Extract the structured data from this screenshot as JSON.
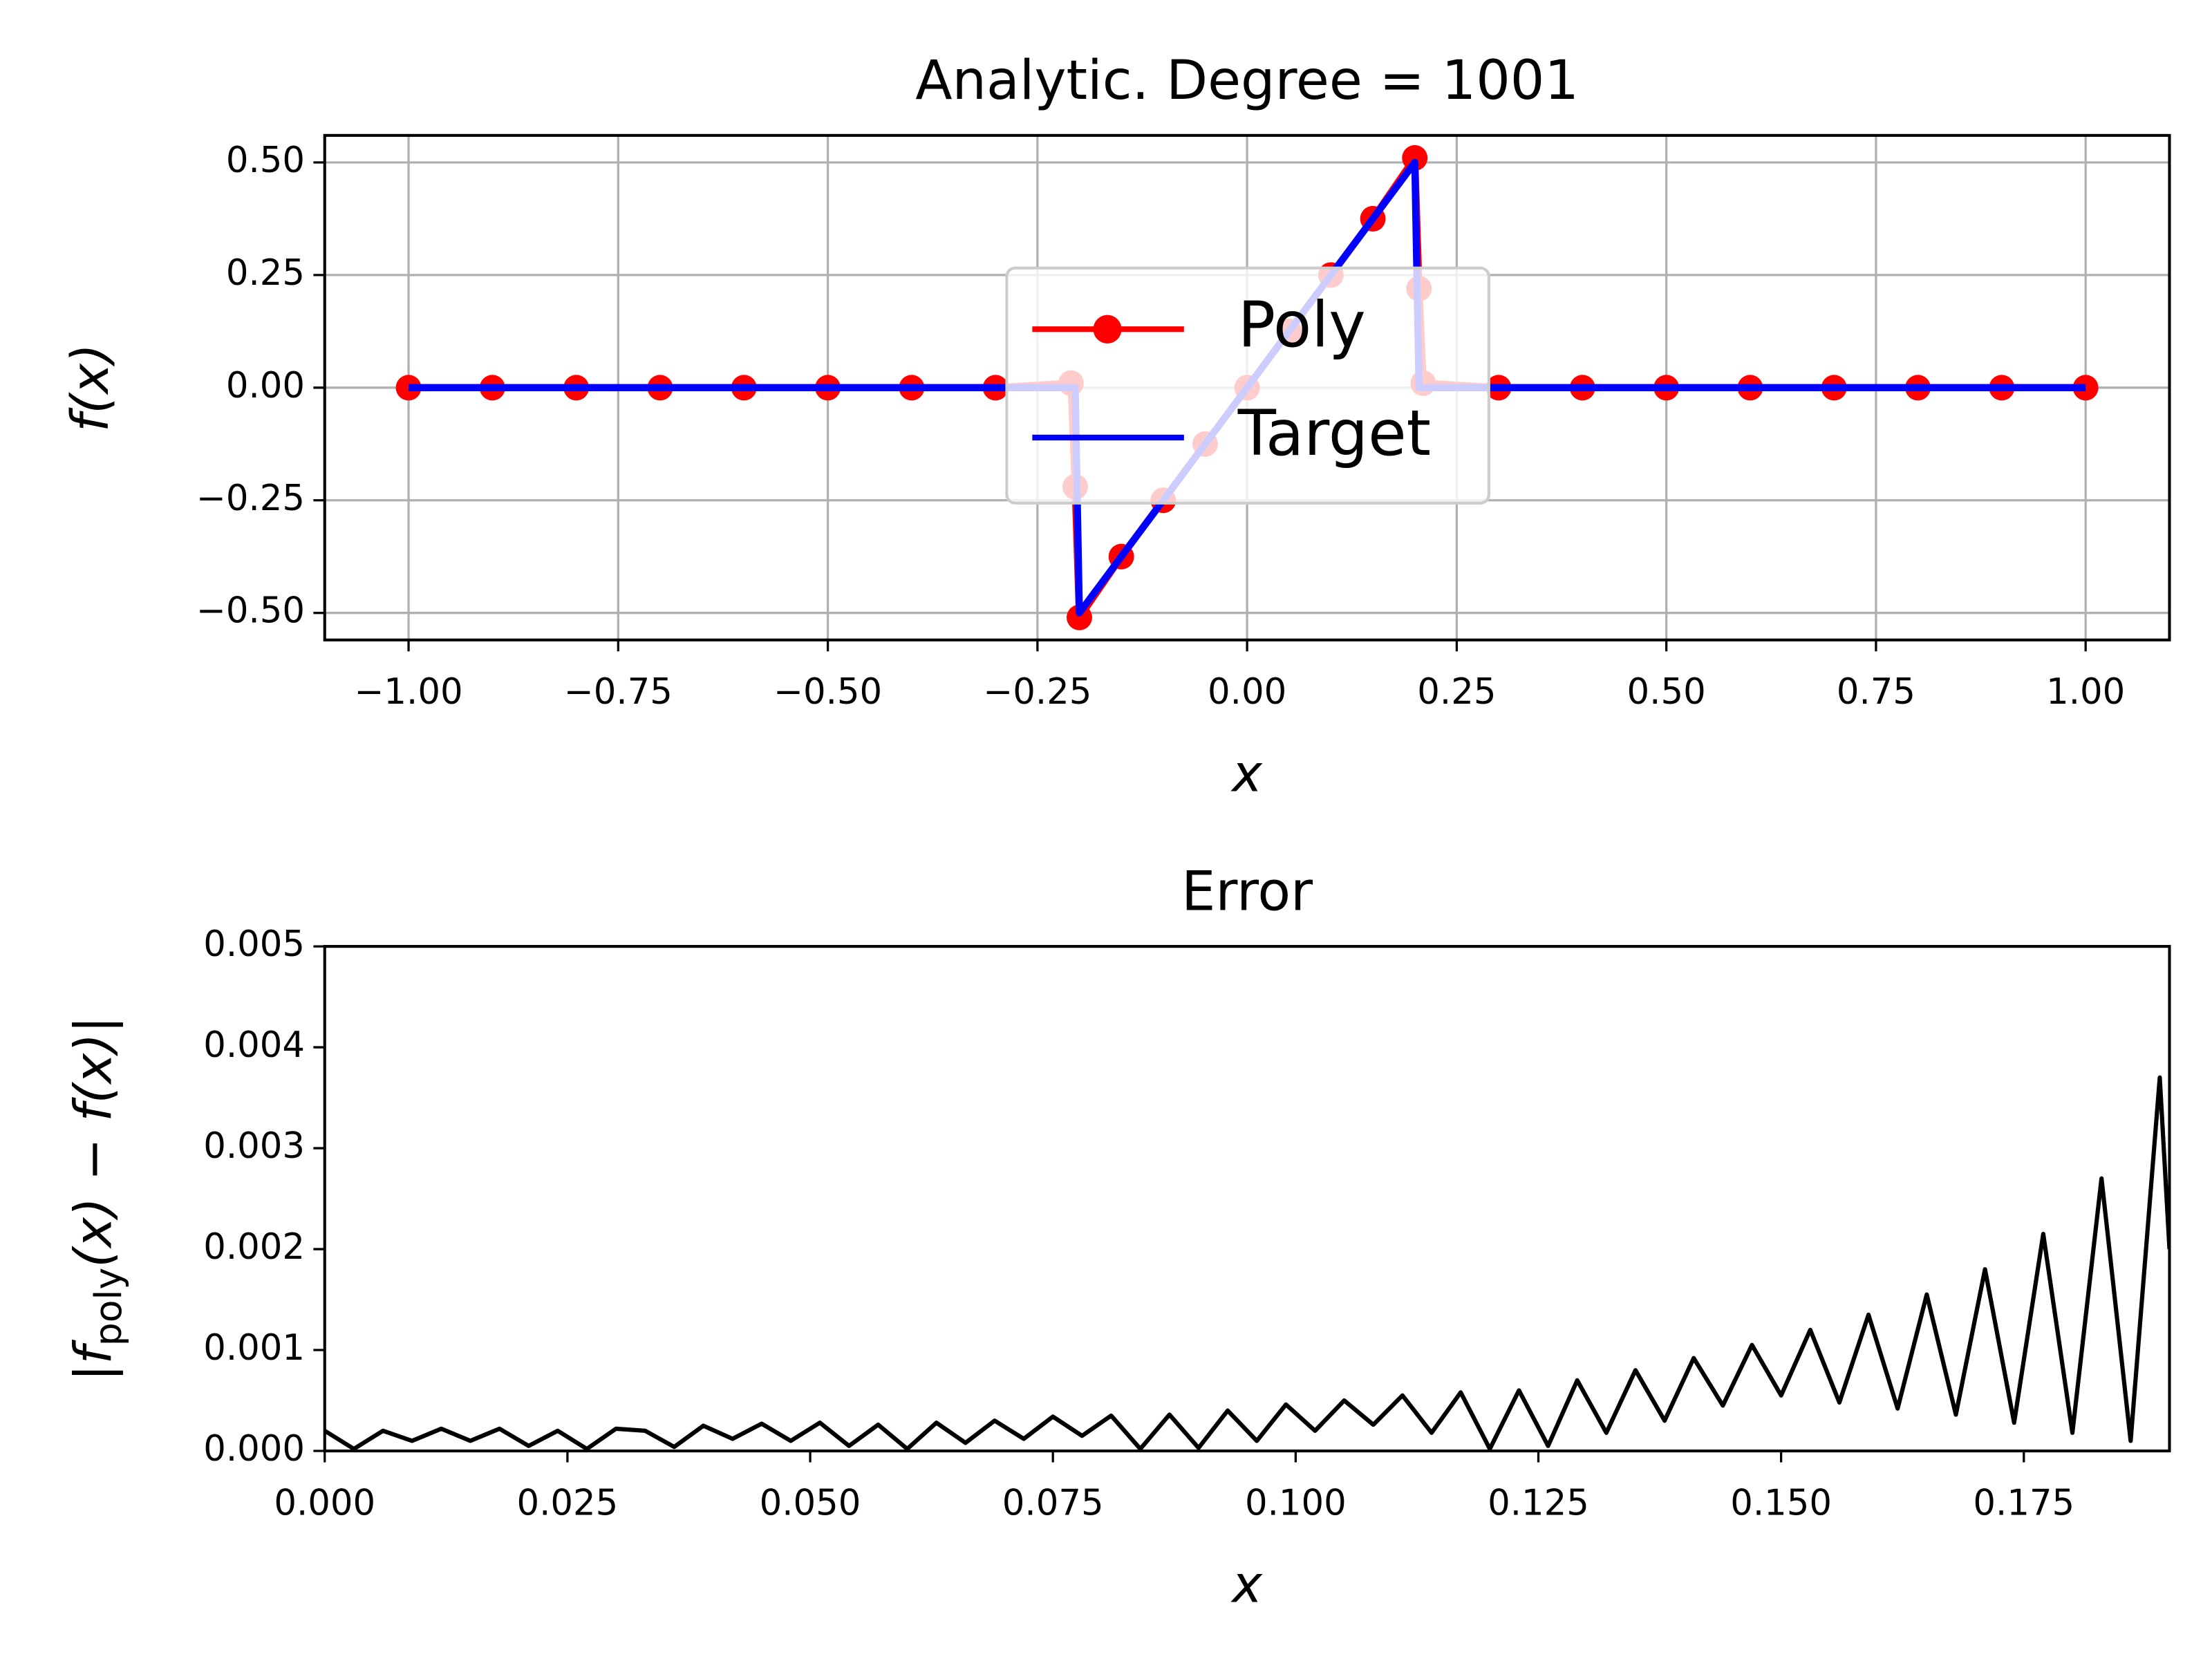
{
  "chart_data": [
    {
      "type": "line",
      "title": "Analytic. Degree = 1001",
      "xlabel": "x",
      "ylabel": "f(x)",
      "x": [
        -1,
        -0.9,
        -0.8,
        -0.7,
        -0.6,
        -0.5,
        -0.4,
        -0.3,
        -0.21,
        -0.205,
        -0.2,
        -0.15,
        -0.1,
        -0.05,
        0,
        0.05,
        0.1,
        0.15,
        0.2,
        0.205,
        0.21,
        0.3,
        0.4,
        0.5,
        0.6,
        0.7,
        0.8,
        0.9,
        1
      ],
      "series": [
        {
          "name": "Poly",
          "color": "#ff0000",
          "marker": true,
          "values": [
            0,
            0,
            0,
            0,
            0,
            0,
            0,
            0,
            0.01,
            -0.22,
            -0.51,
            -0.375,
            -0.25,
            -0.125,
            0,
            0.125,
            0.25,
            0.375,
            0.51,
            0.22,
            0.01,
            0,
            0,
            0,
            0,
            0,
            0,
            0,
            0
          ]
        },
        {
          "name": "Target",
          "color": "#0000ff",
          "marker": false,
          "values": [
            0,
            0,
            0,
            0,
            0,
            0,
            0,
            0,
            0,
            0,
            -0.5,
            -0.375,
            -0.25,
            -0.125,
            0,
            0.125,
            0.25,
            0.375,
            0.5,
            0,
            0,
            0,
            0,
            0,
            0,
            0,
            0,
            0,
            0
          ]
        }
      ],
      "xlim": [
        -1.1,
        1.1
      ],
      "ylim": [
        -0.56,
        0.56
      ],
      "xticks": [
        {
          "value": -1,
          "label": "−1.00"
        },
        {
          "value": -0.75,
          "label": "−0.75"
        },
        {
          "value": -0.5,
          "label": "−0.50"
        },
        {
          "value": -0.25,
          "label": "−0.25"
        },
        {
          "value": 0,
          "label": "0.00"
        },
        {
          "value": 0.25,
          "label": "0.25"
        },
        {
          "value": 0.5,
          "label": "0.50"
        },
        {
          "value": 0.75,
          "label": "0.75"
        },
        {
          "value": 1,
          "label": "1.00"
        }
      ],
      "yticks": [
        {
          "value": -0.5,
          "label": "−0.50"
        },
        {
          "value": -0.25,
          "label": "−0.25"
        },
        {
          "value": 0,
          "label": "0.00"
        },
        {
          "value": 0.25,
          "label": "0.25"
        },
        {
          "value": 0.5,
          "label": "0.50"
        }
      ],
      "grid": true,
      "legend": "center"
    },
    {
      "type": "line",
      "title": "Error",
      "xlabel": "x",
      "ylabel": [
        "|f",
        "poly",
        "(x) − f(x)|"
      ],
      "x": [
        0,
        0.003,
        0.006,
        0.009,
        0.012,
        0.015,
        0.018,
        0.021,
        0.024,
        0.027,
        0.03,
        0.033,
        0.036,
        0.039,
        0.042,
        0.045,
        0.048,
        0.051,
        0.054,
        0.057,
        0.06,
        0.063,
        0.066,
        0.069,
        0.072,
        0.075,
        0.078,
        0.081,
        0.084,
        0.087,
        0.09,
        0.093,
        0.096,
        0.099,
        0.102,
        0.105,
        0.108,
        0.111,
        0.114,
        0.117,
        0.12,
        0.123,
        0.126,
        0.129,
        0.132,
        0.135,
        0.138,
        0.141,
        0.144,
        0.147,
        0.15,
        0.153,
        0.156,
        0.159,
        0.162,
        0.165,
        0.168,
        0.171,
        0.174,
        0.177,
        0.18,
        0.183,
        0.186,
        0.189,
        0.19
      ],
      "series": [
        {
          "name": "Error",
          "color": "#000000",
          "marker": false,
          "values": [
            0.0002,
            2e-05,
            0.0002,
            0.0001,
            0.00022,
            0.0001,
            0.00022,
            5e-05,
            0.0002,
            2e-05,
            0.00022,
            0.0002,
            4e-05,
            0.00025,
            0.00012,
            0.00027,
            0.0001,
            0.00028,
            5e-05,
            0.00026,
            2e-05,
            0.00028,
            8e-05,
            0.0003,
            0.00012,
            0.00034,
            0.00015,
            0.00035,
            2e-05,
            0.00036,
            3e-05,
            0.0004,
            0.0001,
            0.00046,
            0.0002,
            0.0005,
            0.00026,
            0.00055,
            0.00018,
            0.00058,
            2e-05,
            0.0006,
            5e-05,
            0.0007,
            0.00018,
            0.0008,
            0.0003,
            0.00092,
            0.00045,
            0.00105,
            0.00055,
            0.0012,
            0.00048,
            0.00135,
            0.00042,
            0.00155,
            0.00036,
            0.0018,
            0.00028,
            0.00215,
            0.00018,
            0.0027,
            0.0001,
            0.0037,
            0.002
          ]
        }
      ],
      "xlim": [
        0,
        0.19
      ],
      "ylim": [
        0,
        0.005
      ],
      "xticks": [
        {
          "value": 0,
          "label": "0.000"
        },
        {
          "value": 0.025,
          "label": "0.025"
        },
        {
          "value": 0.05,
          "label": "0.050"
        },
        {
          "value": 0.075,
          "label": "0.075"
        },
        {
          "value": 0.1,
          "label": "0.100"
        },
        {
          "value": 0.125,
          "label": "0.125"
        },
        {
          "value": 0.15,
          "label": "0.150"
        },
        {
          "value": 0.175,
          "label": "0.175"
        }
      ],
      "yticks": [
        {
          "value": 0,
          "label": "0.000"
        },
        {
          "value": 0.001,
          "label": "0.001"
        },
        {
          "value": 0.002,
          "label": "0.002"
        },
        {
          "value": 0.003,
          "label": "0.003"
        },
        {
          "value": 0.004,
          "label": "0.004"
        },
        {
          "value": 0.005,
          "label": "0.005"
        }
      ],
      "grid": false
    }
  ]
}
